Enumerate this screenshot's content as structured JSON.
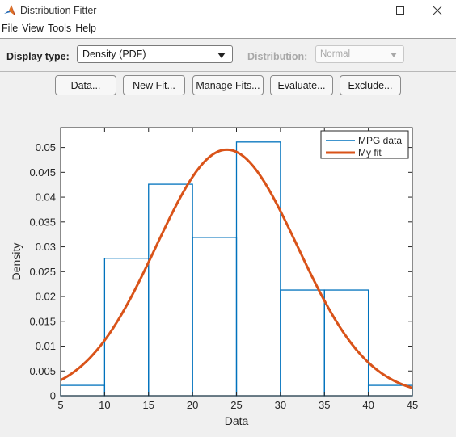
{
  "window": {
    "title": "Distribution Fitter"
  },
  "menu": [
    "File",
    "View",
    "Tools",
    "Help"
  ],
  "controls": {
    "display_type_label": "Display type:",
    "display_type_value": "Density (PDF)",
    "distribution_label": "Distribution:",
    "distribution_value": "Normal"
  },
  "buttons": {
    "data": "Data...",
    "new_fit": "New Fit...",
    "manage_fits": "Manage Fits...",
    "evaluate": "Evaluate...",
    "exclude": "Exclude..."
  },
  "colors": {
    "histogram": "#0072BD",
    "fit": "#D95319"
  },
  "chart_data": {
    "type": "bar",
    "bin_edges": [
      5,
      10,
      15,
      20,
      25,
      30,
      35,
      40,
      45
    ],
    "values": [
      0.0021,
      0.0277,
      0.0426,
      0.0319,
      0.0511,
      0.0213,
      0.0213,
      0.0021
    ],
    "fit": {
      "distribution": "normal",
      "mu": 23.9,
      "sigma": 8.05
    },
    "xlabel": "Data",
    "ylabel": "Density",
    "xlim": [
      5,
      45
    ],
    "ylim": [
      0,
      0.054
    ],
    "xticks": [
      5,
      10,
      15,
      20,
      25,
      30,
      35,
      40,
      45
    ],
    "yticks": [
      0,
      0.005,
      0.01,
      0.015,
      0.02,
      0.025,
      0.03,
      0.035,
      0.04,
      0.045,
      0.05
    ],
    "ytick_labels": [
      "0",
      "0.005",
      "0.01",
      "0.015",
      "0.02",
      "0.025",
      "0.03",
      "0.035",
      "0.04",
      "0.045",
      "0.05"
    ],
    "legend": [
      {
        "name": "MPG data",
        "color": "#0072BD"
      },
      {
        "name": "My fit",
        "color": "#D95319"
      }
    ],
    "legend_position": "top-right",
    "grid": false
  }
}
